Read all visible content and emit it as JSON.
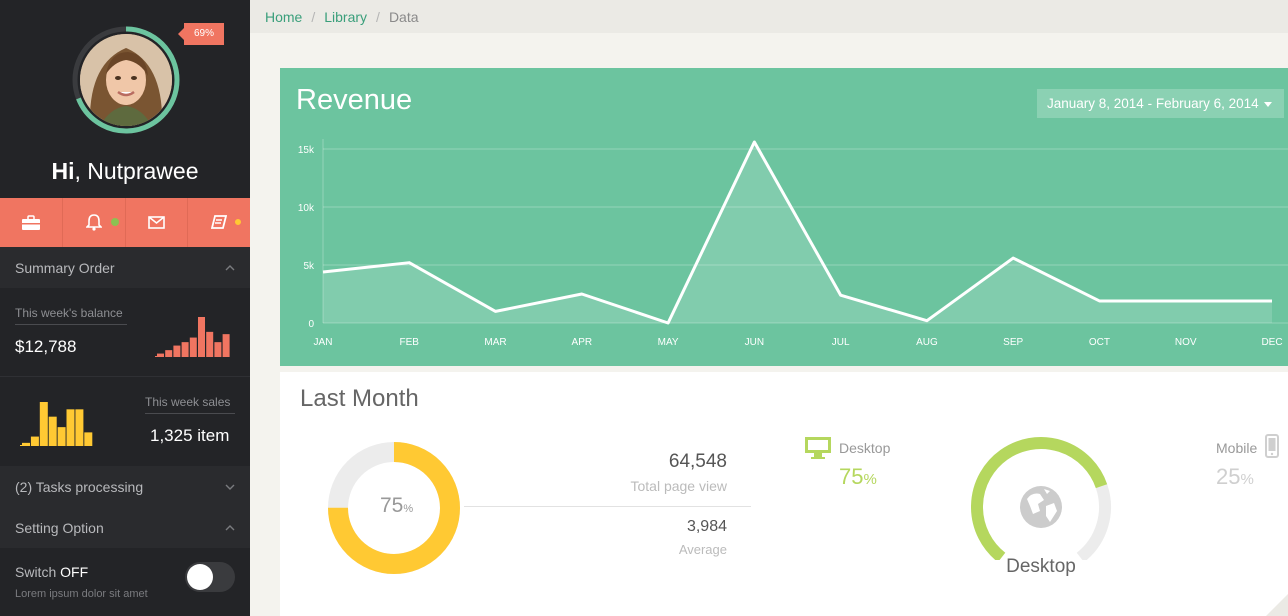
{
  "sidebar": {
    "progress_badge": "69%",
    "progress_value": 0.69,
    "greeting_bold": "Hi",
    "greeting_rest": ", Nutprawee",
    "icons": [
      "briefcase-icon",
      "bell-icon",
      "envelope-icon",
      "book-icon"
    ],
    "summary_order": {
      "title": "Summary Order",
      "balance_label": "This week's balance",
      "balance_value": "$12,788",
      "balance_bars": [
        3,
        6,
        10,
        13,
        17,
        35,
        22,
        13,
        20
      ],
      "sales_label": "This week sales",
      "sales_value": "1,325 item",
      "sales_bars": [
        3,
        9,
        42,
        28,
        18,
        35,
        35,
        13
      ]
    },
    "tasks_title": "(2) Tasks processing",
    "setting_option": {
      "title": "Setting Option",
      "switch_label": "Switch",
      "switch_state": "OFF",
      "switch_desc": "Lorem ipsum dolor sit amet"
    },
    "colors": {
      "accent": "#f07561",
      "ring": "#6cc49f",
      "bars_red": "#f07561",
      "bars_yellow": "#ffc933",
      "dot_green": "#8cc152",
      "dot_yellow": "#ffc933"
    }
  },
  "breadcrumb": {
    "home": "Home",
    "library": "Library",
    "current": "Data"
  },
  "revenue": {
    "title": "Revenue",
    "date_range": "January 8, 2014 - February 6, 2014"
  },
  "chart_data": {
    "type": "area",
    "title": "Revenue",
    "categories": [
      "JAN",
      "FEB",
      "MAR",
      "APR",
      "MAY",
      "JUN",
      "JUL",
      "AUG",
      "SEP",
      "OCT",
      "NOV",
      "DEC"
    ],
    "series": [
      {
        "values": [
          4400,
          5200,
          1000,
          2500,
          0,
          15600,
          2400,
          200,
          5600,
          1900,
          1900,
          1900
        ]
      }
    ],
    "y_ticks": [
      "0",
      "5k",
      "10k",
      "15k"
    ],
    "y_tick_values": [
      0,
      5000,
      10000,
      15000
    ],
    "ylim": [
      0,
      15000
    ],
    "grid": true,
    "colors": {
      "background": "#6cc49f",
      "line": "#ffffff"
    }
  },
  "last_month": {
    "title": "Last Month",
    "donut_value": 75,
    "donut_pct": "75",
    "donut_unit": "%",
    "page_views_value": "64,548",
    "page_views_label": "Total page view",
    "average_value": "3,984",
    "average_label": "Average",
    "desktop_label": "Desktop",
    "desktop_pct": "75",
    "desktop_unit": "%",
    "mobile_label": "Mobile",
    "mobile_pct": "25",
    "mobile_unit": "%",
    "gauge_value": 0.75,
    "gauge_label": "Desktop",
    "colors": {
      "donut": "#ffc933",
      "donut_track": "#ececec",
      "desktop": "#b5d75e",
      "mobile": "#cfcfcf",
      "globe": "#cccccc"
    }
  }
}
